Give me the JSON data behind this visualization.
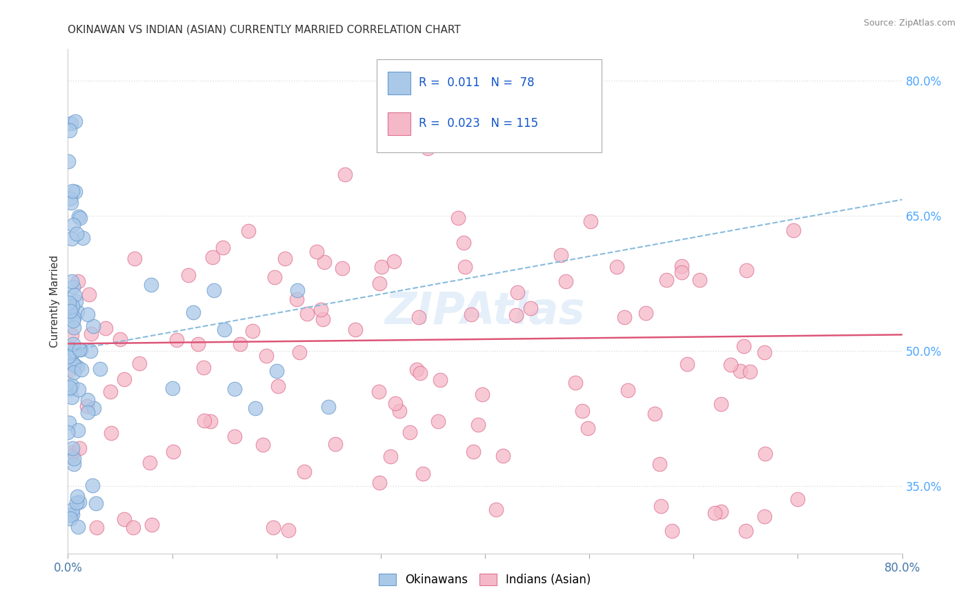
{
  "title": "OKINAWAN VS INDIAN (ASIAN) CURRENTLY MARRIED CORRELATION CHART",
  "source": "Source: ZipAtlas.com",
  "ylabel": "Currently Married",
  "xlim": [
    0.0,
    0.8
  ],
  "ylim": [
    0.275,
    0.835
  ],
  "yticks_right": [
    0.35,
    0.5,
    0.65,
    0.8
  ],
  "ytick_right_labels": [
    "35.0%",
    "50.0%",
    "65.0%",
    "80.0%"
  ],
  "okinawan_color": "#aac8e8",
  "okinawan_edge": "#6699cc",
  "indian_color": "#f5b8c8",
  "indian_edge": "#dd7090",
  "trend_ok_color": "#88bbdd",
  "trend_ind_color": "#dd5577",
  "watermark": "ZIPAtlas",
  "background_color": "#ffffff",
  "grid_color": "#dddddd",
  "ok_trend_y0": 0.5,
  "ok_trend_y1": 0.668,
  "ind_trend_y0": 0.508,
  "ind_trend_y1": 0.518
}
